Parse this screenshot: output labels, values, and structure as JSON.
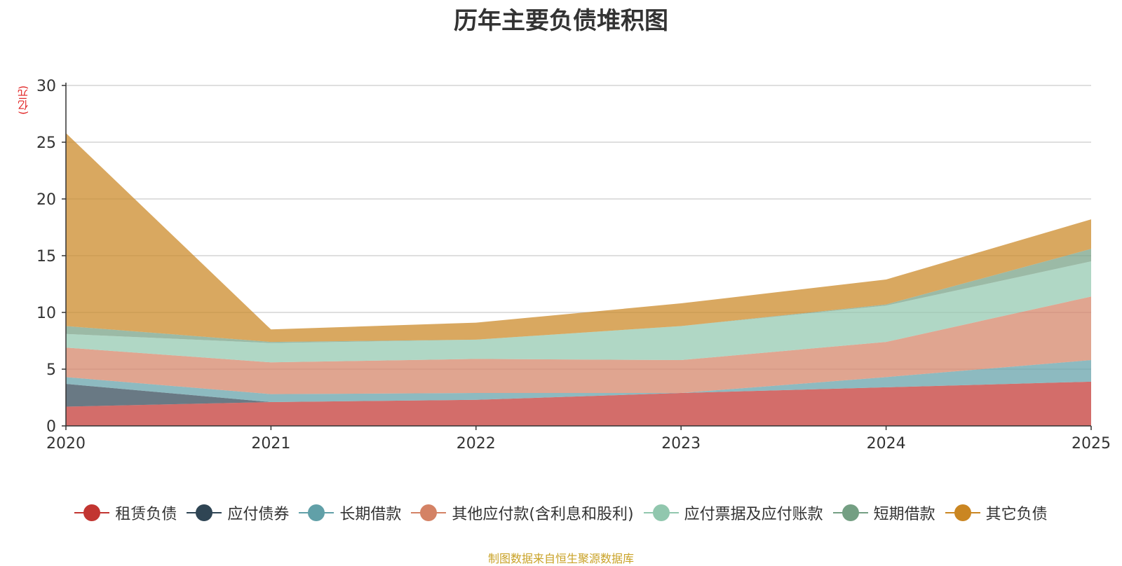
{
  "chart_data": {
    "type": "area",
    "stacked": true,
    "title": "历年主要负债堆积图",
    "ylabel": "(亿元)",
    "xlabel": "",
    "x": [
      "2020",
      "2021",
      "2022",
      "2023",
      "2024",
      "2025"
    ],
    "ylim": [
      0,
      30
    ],
    "yticks": [
      0,
      5,
      10,
      15,
      20,
      25,
      30
    ],
    "grid": true,
    "legend_position": "bottom",
    "series": [
      {
        "name": "租赁负债",
        "color": "#c23531",
        "values": [
          1.7,
          2.1,
          2.3,
          2.9,
          3.4,
          3.9
        ]
      },
      {
        "name": "应付债券",
        "color": "#2f4554",
        "values": [
          2.0,
          0.0,
          0.0,
          0.0,
          0.0,
          0.0
        ]
      },
      {
        "name": "长期借款",
        "color": "#61a0a8",
        "values": [
          0.6,
          0.7,
          0.6,
          0.0,
          0.9,
          1.9
        ]
      },
      {
        "name": "其他应付款(含利息和股利)",
        "color": "#d48265",
        "values": [
          2.6,
          2.8,
          3.0,
          2.9,
          3.1,
          5.6
        ]
      },
      {
        "name": "应付票据及应付账款",
        "color": "#91c7ae",
        "values": [
          1.2,
          1.7,
          1.7,
          3.0,
          3.2,
          3.1
        ]
      },
      {
        "name": "短期借款",
        "color": "#749f83",
        "values": [
          0.7,
          0.1,
          0.0,
          0.0,
          0.1,
          1.1
        ]
      },
      {
        "name": "其它负债",
        "color": "#ca8622",
        "values": [
          17.0,
          1.1,
          1.5,
          2.0,
          2.2,
          2.6
        ]
      }
    ]
  },
  "source": "制图数据来自恒生聚源数据库"
}
